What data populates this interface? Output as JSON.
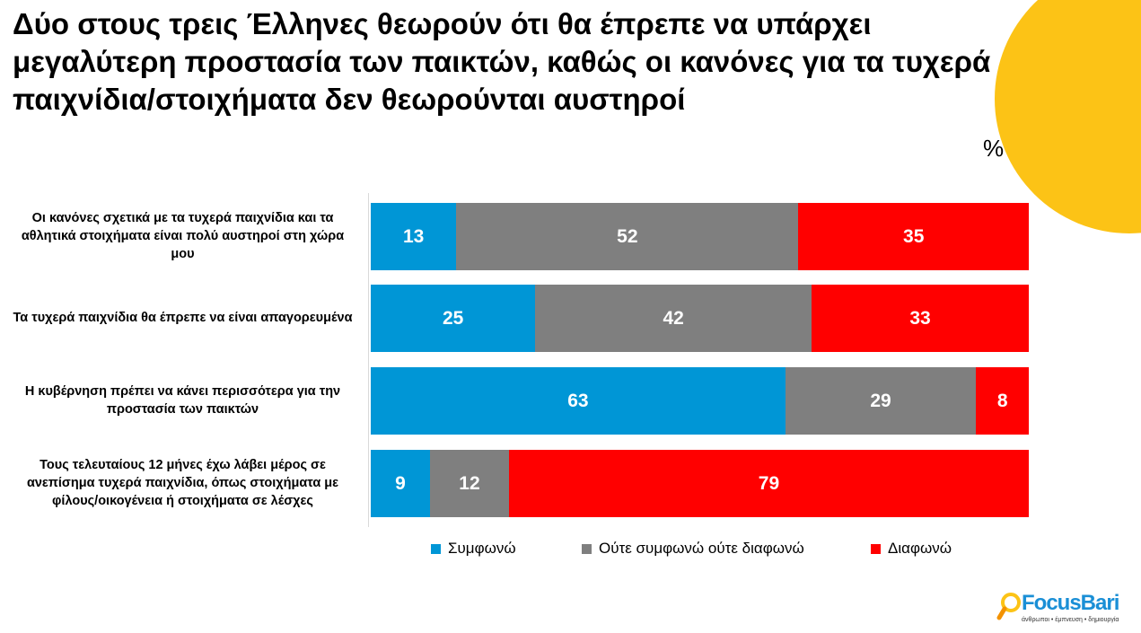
{
  "title": "Δύο στους τρεις Έλληνες θεωρούν ότι θα έπρεπε να υπάρχει μεγαλύτερη προστασία των παικτών, καθώς οι κανόνες για τα τυχερά παιχνίδια/στοιχήματα δεν θεωρούνται αυστηροί",
  "unit_label": "%",
  "logo": {
    "brand": "FocusBari",
    "tagline": "άνθρωποι • έμπνευση • δημιουργία"
  },
  "chart_data": {
    "type": "bar",
    "orientation": "horizontal",
    "stacked": true,
    "title": "Δύο στους τρεις Έλληνες θεωρούν ότι θα έπρεπε να υπάρχει μεγαλύτερη προστασία των παικτών, καθώς οι κανόνες για τα τυχερά παιχνίδια/στοιχήματα δεν θεωρούνται αυστηροί",
    "xlabel": "",
    "ylabel": "",
    "xlim": [
      0,
      100
    ],
    "grid": false,
    "legend_position": "bottom",
    "categories": [
      "Οι κανόνες σχετικά με τα τυχερά παιχνίδια και τα αθλητικά στοιχήματα είναι πολύ αυστηροί στη χώρα μου",
      "Τα τυχερά παιχνίδια θα έπρεπε να είναι απαγορευμένα",
      "Η κυβέρνηση πρέπει να κάνει περισσότερα για την προστασία των παικτών",
      "Τους τελευταίους 12 μήνες έχω λάβει μέρος σε ανεπίσημα τυχερά παιχνίδια, όπως στοιχήματα με φίλους/οικογένεια ή στοιχήματα σε λέσχες"
    ],
    "series": [
      {
        "name": "Συμφωνώ",
        "color": "#0096d6",
        "values": [
          13,
          25,
          63,
          9
        ]
      },
      {
        "name": "Ούτε συμφωνώ ούτε διαφωνώ",
        "color": "#7f7f7f",
        "values": [
          52,
          42,
          29,
          12
        ]
      },
      {
        "name": "Διαφωνώ",
        "color": "#ff0000",
        "values": [
          35,
          33,
          8,
          79
        ]
      }
    ]
  }
}
